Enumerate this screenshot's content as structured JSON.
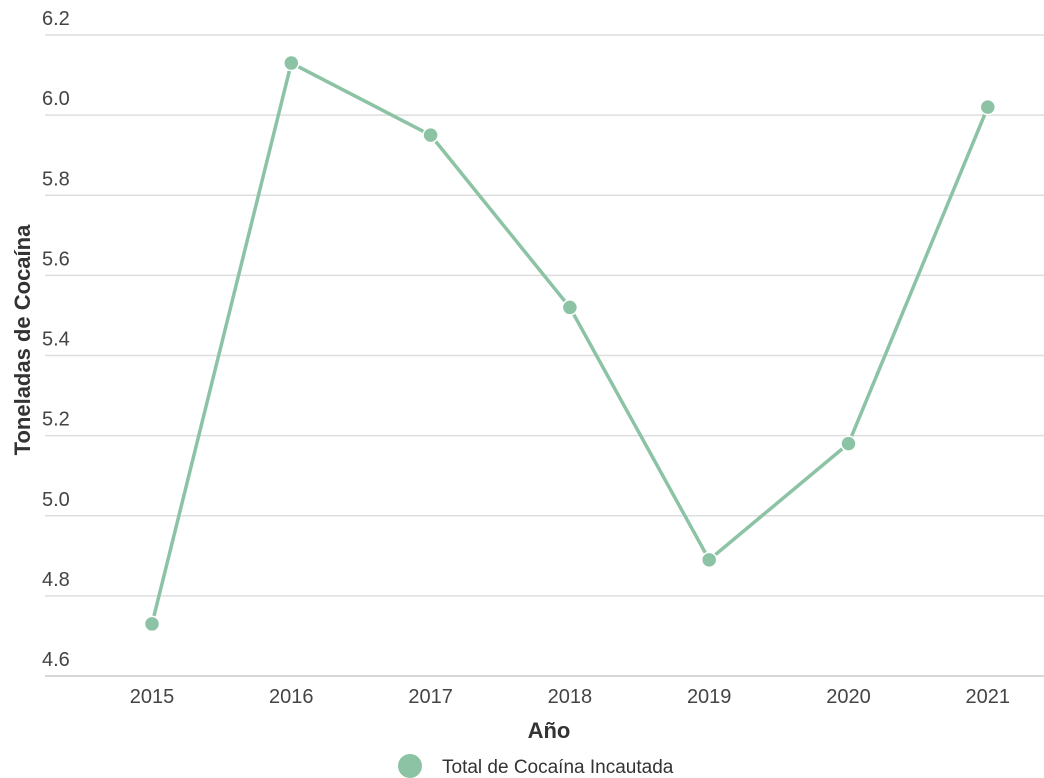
{
  "chart_data": {
    "type": "line",
    "title": "",
    "xlabel": "Año",
    "ylabel": "Toneladas de Cocaína",
    "x": [
      "2015",
      "2016",
      "2017",
      "2018",
      "2019",
      "2020",
      "2021"
    ],
    "series": [
      {
        "name": "Total de Cocaína Incautada",
        "values": [
          4.73,
          6.13,
          5.95,
          5.52,
          4.89,
          5.18,
          6.02
        ],
        "color": "#8cc3a4"
      }
    ],
    "yticks": [
      "4.6",
      "4.8",
      "5.0",
      "5.2",
      "5.4",
      "5.6",
      "5.8",
      "6.0",
      "6.2"
    ],
    "ylim": [
      4.6,
      6.2
    ],
    "grid": true,
    "legend_position": "bottom-center"
  }
}
